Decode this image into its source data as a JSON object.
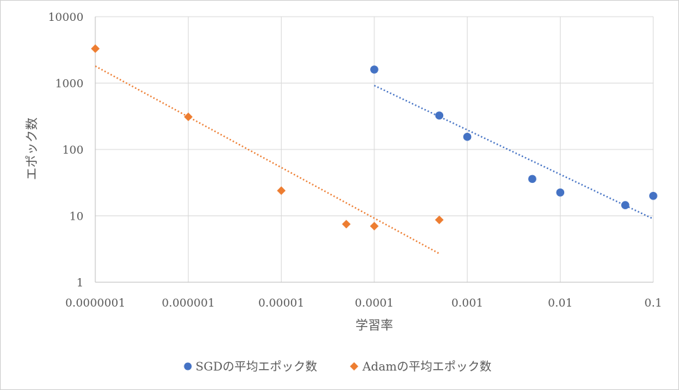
{
  "chart_data": {
    "type": "scatter",
    "title": "",
    "xlabel": "学習率",
    "ylabel": "エポック数",
    "x_scale": "log",
    "y_scale": "log",
    "xlim": [
      1e-07,
      0.1
    ],
    "ylim": [
      1,
      10000
    ],
    "x_ticks": [
      {
        "value": 1e-07,
        "label": "0.0000001"
      },
      {
        "value": 1e-06,
        "label": "0.000001"
      },
      {
        "value": 1e-05,
        "label": "0.00001"
      },
      {
        "value": 0.0001,
        "label": "0.0001"
      },
      {
        "value": 0.001,
        "label": "0.001"
      },
      {
        "value": 0.01,
        "label": "0.01"
      },
      {
        "value": 0.1,
        "label": "0.1"
      }
    ],
    "y_ticks": [
      {
        "value": 1,
        "label": "1"
      },
      {
        "value": 10,
        "label": "10"
      },
      {
        "value": 100,
        "label": "100"
      },
      {
        "value": 1000,
        "label": "1000"
      },
      {
        "value": 10000,
        "label": "10000"
      }
    ],
    "grid": true,
    "legend_position": "bottom",
    "series": [
      {
        "name": "SGDの平均エポック数",
        "marker": "circle",
        "color": "#4472C4",
        "points": [
          {
            "x": 0.0001,
            "y": 1600
          },
          {
            "x": 0.0005,
            "y": 325
          },
          {
            "x": 0.001,
            "y": 155
          },
          {
            "x": 0.005,
            "y": 36
          },
          {
            "x": 0.01,
            "y": 22.5
          },
          {
            "x": 0.05,
            "y": 14.5
          },
          {
            "x": 0.1,
            "y": 20
          }
        ],
        "trendline": {
          "type": "power",
          "from": {
            "x": 0.0001,
            "y": 920
          },
          "to": {
            "x": 0.1,
            "y": 9
          }
        }
      },
      {
        "name": "Adamの平均エポック数",
        "marker": "diamond",
        "color": "#ED7D31",
        "points": [
          {
            "x": 1e-07,
            "y": 3300
          },
          {
            "x": 1e-06,
            "y": 310
          },
          {
            "x": 1e-05,
            "y": 24
          },
          {
            "x": 5e-05,
            "y": 7.5
          },
          {
            "x": 0.0001,
            "y": 7
          },
          {
            "x": 0.0005,
            "y": 8.7
          }
        ],
        "trendline": {
          "type": "power",
          "from": {
            "x": 1e-07,
            "y": 1800
          },
          "to": {
            "x": 0.0005,
            "y": 2.7
          }
        }
      }
    ]
  }
}
